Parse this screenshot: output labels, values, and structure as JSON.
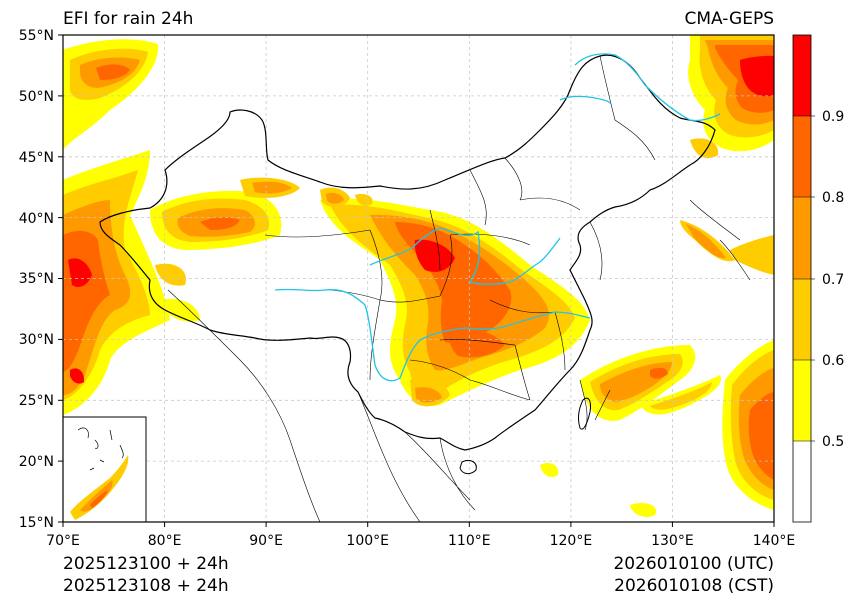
{
  "map": {
    "title_left": "EFI for rain 24h",
    "title_right": "CMA-GEPS",
    "footer_left_1": "2025123100 + 24h",
    "footer_left_2": "2025123108 + 24h",
    "footer_right_1": "2026010100 (UTC)",
    "footer_right_2": "2026010108 (CST)",
    "x_ticks": [
      "70°E",
      "80°E",
      "90°E",
      "100°E",
      "110°E",
      "120°E",
      "130°E",
      "140°E"
    ],
    "y_ticks": [
      "55°N",
      "50°N",
      "45°N",
      "40°N",
      "35°N",
      "30°N",
      "25°N",
      "20°N",
      "15°N"
    ],
    "extent": {
      "lon": [
        70,
        140
      ],
      "lat": [
        15,
        55
      ]
    },
    "grid": true,
    "colorbar": {
      "labels": [
        "0.9",
        "0.8",
        "0.7",
        "0.6",
        "0.5"
      ],
      "levels": [
        0.5,
        0.6,
        0.7,
        0.8,
        0.9
      ],
      "colors": [
        "#ffffff",
        "#ffff00",
        "#ffcc00",
        "#ff9900",
        "#ff6600",
        "#ff0000"
      ]
    }
  }
}
